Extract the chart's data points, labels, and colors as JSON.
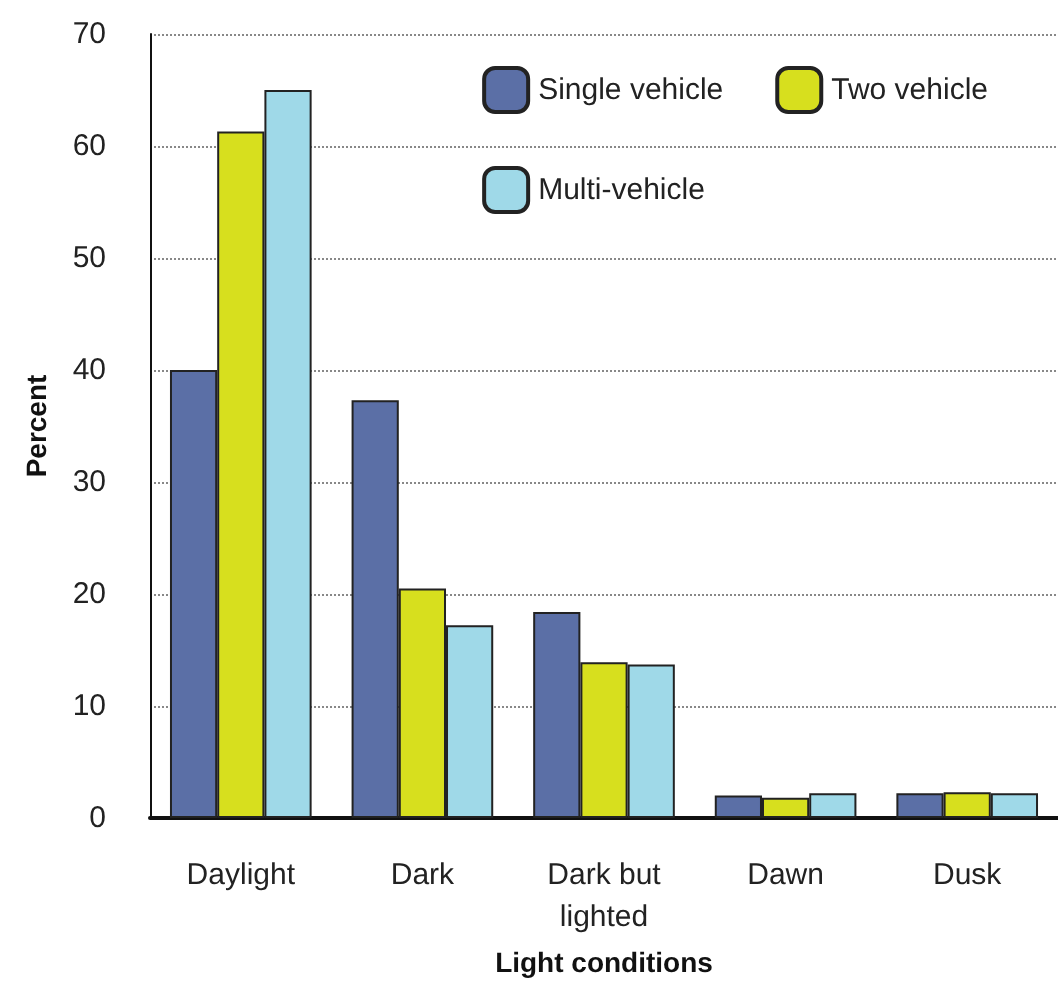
{
  "chart_data": {
    "type": "bar",
    "xlabel": "Light conditions",
    "ylabel": "Percent",
    "categories": [
      "Daylight",
      "Dark",
      "Dark but\nlighted",
      "Dawn",
      "Dusk"
    ],
    "series": [
      {
        "name": "Single vehicle",
        "color": "#5b6fa6",
        "values": [
          40.0,
          37.3,
          18.4,
          2.0,
          2.2
        ]
      },
      {
        "name": "Two vehicle",
        "color": "#d7df1e",
        "values": [
          61.3,
          20.5,
          13.9,
          1.8,
          2.3
        ]
      },
      {
        "name": "Multi-vehicle",
        "color": "#9fd9e8",
        "values": [
          65.0,
          17.2,
          13.7,
          2.2,
          2.2
        ]
      }
    ],
    "ylim": [
      0,
      70
    ],
    "yticks": [
      0,
      10,
      20,
      30,
      40,
      50,
      60,
      70
    ],
    "grid": "y",
    "legend": "top right"
  }
}
